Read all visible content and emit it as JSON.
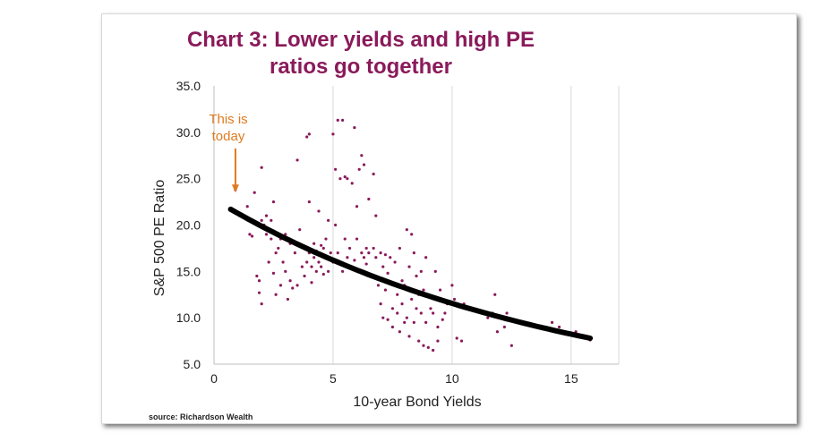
{
  "chart_data": {
    "type": "scatter",
    "title_lines": [
      "Chart 3: Lower yields and high PE",
      "ratios go together"
    ],
    "xlabel": "10-year Bond Yields",
    "ylabel": "S&P 500 PE Ratio",
    "xlim": [
      0,
      17
    ],
    "ylim": [
      5,
      35
    ],
    "x_ticks": [
      0,
      5,
      10,
      15
    ],
    "x_tick_labels": [
      "0",
      "5",
      "10",
      "15"
    ],
    "y_ticks": [
      5,
      10,
      15,
      20,
      25,
      30,
      35
    ],
    "y_tick_labels": [
      "5.0",
      "10.0",
      "15.0",
      "20.0",
      "25.0",
      "30.0",
      "35.0"
    ],
    "grid": "vertical",
    "colors": {
      "points": "#8a1a5a",
      "trend": "#000000",
      "annotation": "#e07a1f",
      "title": "#8a1a5a"
    },
    "series": [
      {
        "kind": "points",
        "points": [
          [
            0.9,
            23.8
          ],
          [
            1.4,
            22.0
          ],
          [
            1.5,
            19.0
          ],
          [
            1.6,
            18.8
          ],
          [
            1.7,
            23.5
          ],
          [
            1.8,
            14.5
          ],
          [
            1.9,
            14.0
          ],
          [
            1.9,
            12.7
          ],
          [
            2.0,
            11.5
          ],
          [
            2.0,
            20.5
          ],
          [
            2.1,
            20.0
          ],
          [
            2.0,
            26.2
          ],
          [
            2.2,
            19.0
          ],
          [
            2.2,
            21.0
          ],
          [
            2.3,
            16.0
          ],
          [
            2.4,
            20.5
          ],
          [
            2.4,
            18.5
          ],
          [
            2.5,
            22.5
          ],
          [
            2.5,
            14.8
          ],
          [
            2.6,
            17.0
          ],
          [
            2.6,
            12.5
          ],
          [
            2.7,
            17.5
          ],
          [
            2.8,
            18.5
          ],
          [
            2.8,
            13.5
          ],
          [
            2.9,
            16.0
          ],
          [
            3.0,
            19.0
          ],
          [
            3.0,
            15.0
          ],
          [
            3.1,
            12.0
          ],
          [
            3.2,
            18.0
          ],
          [
            3.2,
            14.0
          ],
          [
            3.3,
            13.2
          ],
          [
            3.4,
            17.0
          ],
          [
            3.5,
            13.5
          ],
          [
            3.5,
            27.0
          ],
          [
            3.6,
            19.5
          ],
          [
            3.7,
            15.5
          ],
          [
            3.8,
            17.5
          ],
          [
            3.8,
            14.5
          ],
          [
            3.9,
            16.0
          ],
          [
            3.9,
            29.5
          ],
          [
            4.0,
            17.0
          ],
          [
            4.0,
            29.8
          ],
          [
            4.0,
            22.5
          ],
          [
            4.1,
            15.5
          ],
          [
            4.1,
            13.8
          ],
          [
            4.2,
            18.0
          ],
          [
            4.2,
            16.5
          ],
          [
            4.3,
            17.2
          ],
          [
            4.3,
            15.0
          ],
          [
            4.4,
            16.0
          ],
          [
            4.4,
            21.5
          ],
          [
            4.5,
            17.8
          ],
          [
            4.5,
            15.5
          ],
          [
            4.6,
            14.7
          ],
          [
            4.6,
            17.5
          ],
          [
            4.7,
            16.5
          ],
          [
            4.7,
            18.5
          ],
          [
            4.8,
            15.0
          ],
          [
            4.8,
            20.5
          ],
          [
            4.9,
            17.0
          ],
          [
            5.0,
            16.0
          ],
          [
            5.0,
            29.8
          ],
          [
            5.1,
            26.0
          ],
          [
            5.1,
            20.0
          ],
          [
            5.2,
            31.3
          ],
          [
            5.2,
            17.0
          ],
          [
            5.3,
            25.0
          ],
          [
            5.4,
            31.3
          ],
          [
            5.4,
            15.0
          ],
          [
            5.5,
            25.2
          ],
          [
            5.5,
            18.5
          ],
          [
            5.6,
            25.0
          ],
          [
            5.6,
            16.5
          ],
          [
            5.7,
            17.5
          ],
          [
            5.8,
            15.5
          ],
          [
            5.8,
            24.5
          ],
          [
            5.9,
            30.5
          ],
          [
            5.9,
            16.2
          ],
          [
            6.0,
            18.5
          ],
          [
            6.0,
            22.0
          ],
          [
            6.1,
            26.0
          ],
          [
            6.2,
            27.5
          ],
          [
            6.2,
            17.0
          ],
          [
            6.3,
            26.5
          ],
          [
            6.3,
            16.5
          ],
          [
            6.4,
            17.5
          ],
          [
            6.4,
            15.8
          ],
          [
            6.5,
            22.8
          ],
          [
            6.5,
            17.0
          ],
          [
            6.6,
            14.5
          ],
          [
            6.7,
            25.5
          ],
          [
            6.7,
            17.5
          ],
          [
            6.8,
            16.5
          ],
          [
            6.8,
            21.0
          ],
          [
            6.9,
            13.5
          ],
          [
            7.0,
            17.0
          ],
          [
            7.0,
            11.5
          ],
          [
            7.1,
            15.5
          ],
          [
            7.1,
            10.0
          ],
          [
            7.2,
            13.0
          ],
          [
            7.2,
            16.8
          ],
          [
            7.3,
            9.8
          ],
          [
            7.3,
            14.8
          ],
          [
            7.4,
            16.5
          ],
          [
            7.5,
            11.0
          ],
          [
            7.5,
            9.0
          ],
          [
            7.6,
            16.0
          ],
          [
            7.6,
            13.5
          ],
          [
            7.7,
            12.5
          ],
          [
            7.7,
            10.5
          ],
          [
            7.8,
            17.5
          ],
          [
            7.8,
            8.5
          ],
          [
            7.9,
            14.0
          ],
          [
            7.9,
            11.5
          ],
          [
            8.0,
            9.5
          ],
          [
            8.0,
            13.5
          ],
          [
            8.1,
            19.5
          ],
          [
            8.1,
            10.0
          ],
          [
            8.2,
            15.5
          ],
          [
            8.2,
            8.0
          ],
          [
            8.3,
            19.0
          ],
          [
            8.3,
            12.0
          ],
          [
            8.4,
            9.5
          ],
          [
            8.4,
            17.0
          ],
          [
            8.5,
            11.0
          ],
          [
            8.5,
            14.5
          ],
          [
            8.6,
            7.5
          ],
          [
            8.6,
            12.5
          ],
          [
            8.7,
            10.5
          ],
          [
            8.7,
            15.0
          ],
          [
            8.8,
            7.0
          ],
          [
            8.8,
            13.0
          ],
          [
            8.9,
            16.5
          ],
          [
            8.9,
            9.5
          ],
          [
            9.0,
            12.5
          ],
          [
            9.0,
            6.8
          ],
          [
            9.1,
            11.0
          ],
          [
            9.2,
            6.5
          ],
          [
            9.2,
            10.5
          ],
          [
            9.3,
            15.0
          ],
          [
            9.4,
            9.0
          ],
          [
            9.4,
            7.5
          ],
          [
            9.5,
            13.0
          ],
          [
            9.6,
            9.8
          ],
          [
            9.7,
            10.5
          ],
          [
            9.8,
            11.5
          ],
          [
            10.0,
            13.5
          ],
          [
            10.1,
            12.0
          ],
          [
            10.2,
            7.8
          ],
          [
            10.4,
            7.5
          ],
          [
            10.5,
            11.5
          ],
          [
            11.5,
            10.0
          ],
          [
            11.7,
            10.5
          ],
          [
            11.8,
            12.5
          ],
          [
            11.9,
            8.5
          ],
          [
            12.2,
            9.0
          ],
          [
            12.3,
            10.5
          ],
          [
            12.5,
            7.0
          ],
          [
            13.5,
            9.0
          ],
          [
            14.2,
            9.5
          ],
          [
            14.5,
            9.0
          ],
          [
            15.2,
            8.5
          ],
          [
            15.5,
            8.0
          ],
          [
            15.8,
            7.6
          ]
        ]
      },
      {
        "kind": "trend",
        "fit": "exponential",
        "x_range": [
          0.7,
          15.8
        ],
        "y_at_start": 21.7,
        "y_at_end": 7.8
      }
    ],
    "annotations": [
      {
        "lines": [
          "This is",
          "today"
        ],
        "points_to": [
          0.9,
          23.5
        ]
      }
    ],
    "source": "source: Richardson Wealth"
  }
}
